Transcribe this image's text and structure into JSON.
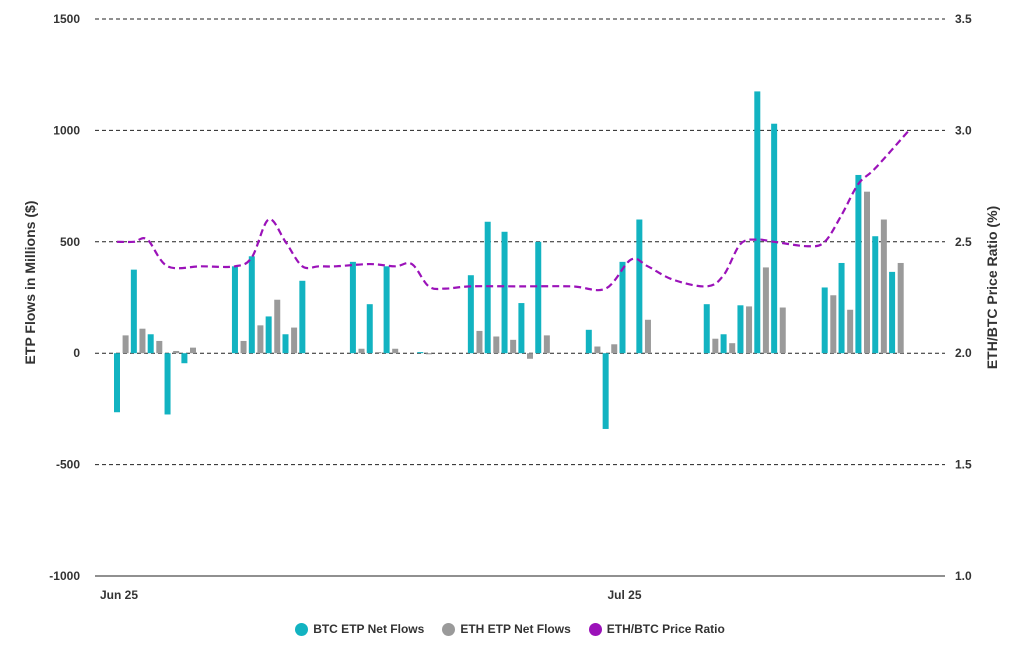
{
  "colors": {
    "btc": "#12b3c1",
    "eth": "#9a9a9a",
    "ratio": "#9b12b9",
    "grid": "#222222"
  },
  "chart_data": {
    "type": "bar",
    "y_left_label": "ETP Flows in Millions ($)",
    "y_right_label": "ETH/BTC Price Ratio (%)",
    "y_left_ticks": [
      "1500",
      "1000",
      "500",
      "0",
      "-500",
      "-1000"
    ],
    "y_right_ticks": [
      "3.5",
      "3.0",
      "2.5",
      "2.0",
      "1.5",
      "1.0"
    ],
    "ylim_left": [
      -1000,
      1500
    ],
    "ylim_right": [
      1.0,
      3.5
    ],
    "x_ticks": [
      {
        "label": "Jun 25",
        "day": 0
      },
      {
        "label": "Jul 25",
        "day": 30
      }
    ],
    "grid": "horizontal dashed",
    "legend_position": "bottom",
    "series": [
      {
        "name": "BTC ETP Net Flows",
        "type": "bar",
        "points": [
          {
            "day": 0,
            "value": -265
          },
          {
            "day": 1,
            "value": 375
          },
          {
            "day": 2,
            "value": 85
          },
          {
            "day": 3,
            "value": -275
          },
          {
            "day": 4,
            "value": -45
          },
          {
            "day": 7,
            "value": 390
          },
          {
            "day": 8,
            "value": 435
          },
          {
            "day": 9,
            "value": 165
          },
          {
            "day": 10,
            "value": 85
          },
          {
            "day": 11,
            "value": 325
          },
          {
            "day": 14,
            "value": 410
          },
          {
            "day": 15,
            "value": 220
          },
          {
            "day": 16,
            "value": 390
          },
          {
            "day": 18,
            "value": 5
          },
          {
            "day": 21,
            "value": 350
          },
          {
            "day": 22,
            "value": 590
          },
          {
            "day": 23,
            "value": 545
          },
          {
            "day": 24,
            "value": 225
          },
          {
            "day": 25,
            "value": 500
          },
          {
            "day": 28,
            "value": 105
          },
          {
            "day": 29,
            "value": -340
          },
          {
            "day": 30,
            "value": 410
          },
          {
            "day": 31,
            "value": 600
          },
          {
            "day": 35,
            "value": 220
          },
          {
            "day": 36,
            "value": 85
          },
          {
            "day": 37,
            "value": 215
          },
          {
            "day": 38,
            "value": 1175
          },
          {
            "day": 39,
            "value": 1030
          },
          {
            "day": 42,
            "value": 295
          },
          {
            "day": 43,
            "value": 405
          },
          {
            "day": 44,
            "value": 800
          },
          {
            "day": 45,
            "value": 525
          },
          {
            "day": 46,
            "value": 365
          }
        ]
      },
      {
        "name": "ETH ETP Net Flows",
        "type": "bar",
        "points": [
          {
            "day": 0,
            "value": 80
          },
          {
            "day": 1,
            "value": 110
          },
          {
            "day": 2,
            "value": 55
          },
          {
            "day": 3,
            "value": 10
          },
          {
            "day": 4,
            "value": 25
          },
          {
            "day": 7,
            "value": 55
          },
          {
            "day": 8,
            "value": 125
          },
          {
            "day": 9,
            "value": 240
          },
          {
            "day": 10,
            "value": 115
          },
          {
            "day": 14,
            "value": 20
          },
          {
            "day": 15,
            "value": 5
          },
          {
            "day": 16,
            "value": 20
          },
          {
            "day": 18,
            "value": -5
          },
          {
            "day": 21,
            "value": 100
          },
          {
            "day": 22,
            "value": 75
          },
          {
            "day": 23,
            "value": 60
          },
          {
            "day": 24,
            "value": -25
          },
          {
            "day": 25,
            "value": 80
          },
          {
            "day": 28,
            "value": 30
          },
          {
            "day": 29,
            "value": 40
          },
          {
            "day": 31,
            "value": 150
          },
          {
            "day": 35,
            "value": 65
          },
          {
            "day": 36,
            "value": 45
          },
          {
            "day": 37,
            "value": 210
          },
          {
            "day": 38,
            "value": 385
          },
          {
            "day": 39,
            "value": 205
          },
          {
            "day": 42,
            "value": 260
          },
          {
            "day": 43,
            "value": 195
          },
          {
            "day": 44,
            "value": 725
          },
          {
            "day": 45,
            "value": 600
          },
          {
            "day": 46,
            "value": 405
          }
        ]
      },
      {
        "name": "ETH/BTC Price Ratio",
        "type": "line",
        "axis": "right",
        "style": "dashed",
        "points": [
          {
            "day": 0,
            "value": 2.5
          },
          {
            "day": 1,
            "value": 2.5
          },
          {
            "day": 1.8,
            "value": 2.51
          },
          {
            "day": 3,
            "value": 2.39
          },
          {
            "day": 5,
            "value": 2.39
          },
          {
            "day": 7,
            "value": 2.39
          },
          {
            "day": 8,
            "value": 2.43
          },
          {
            "day": 9,
            "value": 2.6
          },
          {
            "day": 10,
            "value": 2.5
          },
          {
            "day": 11,
            "value": 2.39
          },
          {
            "day": 12,
            "value": 2.39
          },
          {
            "day": 13,
            "value": 2.39
          },
          {
            "day": 15,
            "value": 2.4
          },
          {
            "day": 16.5,
            "value": 2.39
          },
          {
            "day": 17.5,
            "value": 2.4
          },
          {
            "day": 18.5,
            "value": 2.3
          },
          {
            "day": 19.5,
            "value": 2.29
          },
          {
            "day": 21,
            "value": 2.3
          },
          {
            "day": 24,
            "value": 2.3
          },
          {
            "day": 27,
            "value": 2.3
          },
          {
            "day": 29,
            "value": 2.29
          },
          {
            "day": 30.5,
            "value": 2.42
          },
          {
            "day": 31.5,
            "value": 2.39
          },
          {
            "day": 33,
            "value": 2.33
          },
          {
            "day": 35,
            "value": 2.3
          },
          {
            "day": 36,
            "value": 2.35
          },
          {
            "day": 37,
            "value": 2.49
          },
          {
            "day": 38,
            "value": 2.51
          },
          {
            "day": 39,
            "value": 2.5
          },
          {
            "day": 41,
            "value": 2.48
          },
          {
            "day": 42,
            "value": 2.5
          },
          {
            "day": 43,
            "value": 2.62
          },
          {
            "day": 44,
            "value": 2.76
          },
          {
            "day": 45,
            "value": 2.83
          },
          {
            "day": 47,
            "value": 3.0
          }
        ]
      }
    ]
  }
}
